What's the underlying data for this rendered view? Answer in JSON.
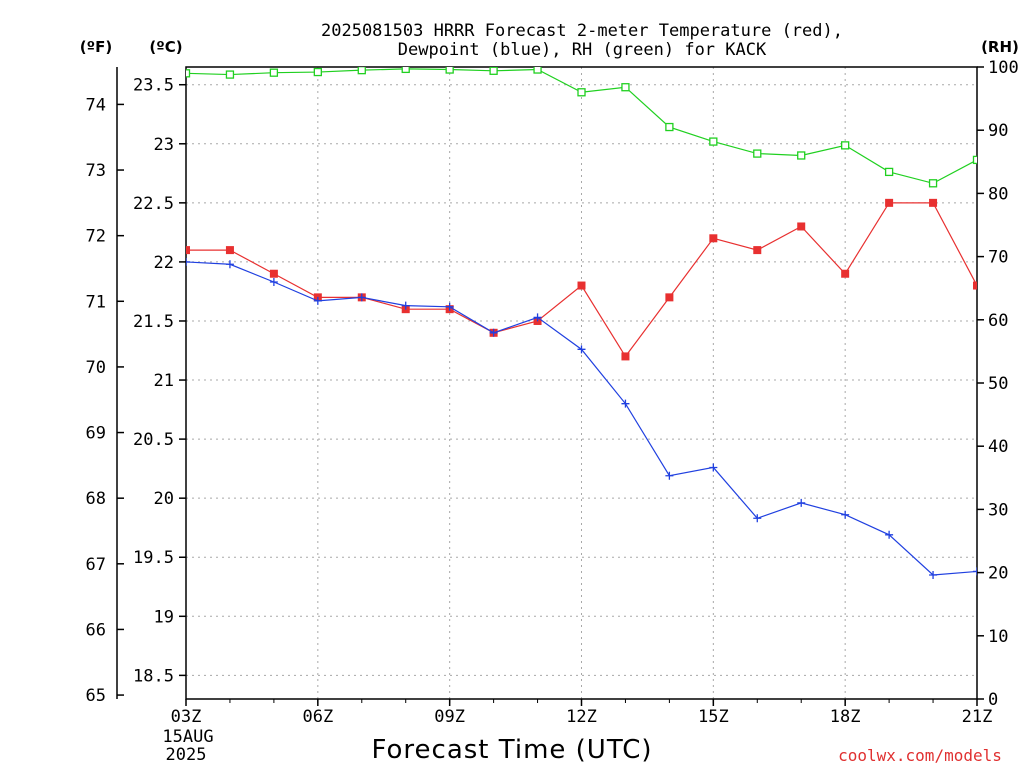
{
  "chart_data": {
    "type": "line",
    "title": [
      "2025081503 HRRR Forecast 2-meter Temperature (red),",
      "Dewpoint (blue), RH (green) for KACK"
    ],
    "xlabel": "Forecast Time (UTC)",
    "credit": "coolwx.com/models",
    "x_tick_labels": [
      "03Z",
      "06Z",
      "09Z",
      "12Z",
      "15Z",
      "18Z",
      "21Z"
    ],
    "x_date_label": [
      "15AUG",
      "2025"
    ],
    "x_hours": [
      3,
      4,
      5,
      6,
      7,
      8,
      9,
      10,
      11,
      12,
      13,
      14,
      15,
      16,
      17,
      18,
      19,
      20,
      21
    ],
    "xlim": [
      3,
      21
    ],
    "axes": {
      "fahrenheit": {
        "unit_label": "(ºF)",
        "ticks": [
          65,
          66,
          67,
          68,
          69,
          70,
          71,
          72,
          73,
          74
        ]
      },
      "celsius": {
        "unit_label": "(ºC)",
        "ticks": [
          "18.5",
          "19",
          "19.5",
          "20",
          "20.5",
          "21",
          "21.5",
          "22",
          "22.5",
          "23",
          "23.5"
        ],
        "ylim": [
          18.3,
          23.65
        ]
      },
      "rh": {
        "unit_label": "(RH)",
        "ticks": [
          0,
          10,
          20,
          30,
          40,
          50,
          60,
          70,
          80,
          90,
          100
        ],
        "ylim": [
          0,
          100
        ]
      }
    },
    "grid": true,
    "series": [
      {
        "color": "#e83030",
        "axis": "celsius",
        "marker": "filled-square",
        "values": [
          22.1,
          22.1,
          21.9,
          21.7,
          21.7,
          21.6,
          21.6,
          21.4,
          21.5,
          21.8,
          21.2,
          21.7,
          22.2,
          22.1,
          22.3,
          21.9,
          22.5,
          22.5,
          21.8
        ]
      },
      {
        "color": "#2040e0",
        "axis": "celsius",
        "marker": "plus",
        "values": [
          22.0,
          21.98,
          21.83,
          21.67,
          21.7,
          21.63,
          21.62,
          21.4,
          21.53,
          21.26,
          20.8,
          20.19,
          20.26,
          19.83,
          19.96,
          19.86,
          19.69,
          19.35,
          19.38
        ]
      },
      {
        "color": "#20d020",
        "axis": "rh",
        "marker": "open-square",
        "values": [
          99,
          98.8,
          99.1,
          99.2,
          99.5,
          99.7,
          99.6,
          99.4,
          99.6,
          96,
          96.8,
          90.5,
          88.2,
          86.3,
          86,
          87.6,
          83.4,
          81.6,
          85.3
        ]
      }
    ]
  }
}
